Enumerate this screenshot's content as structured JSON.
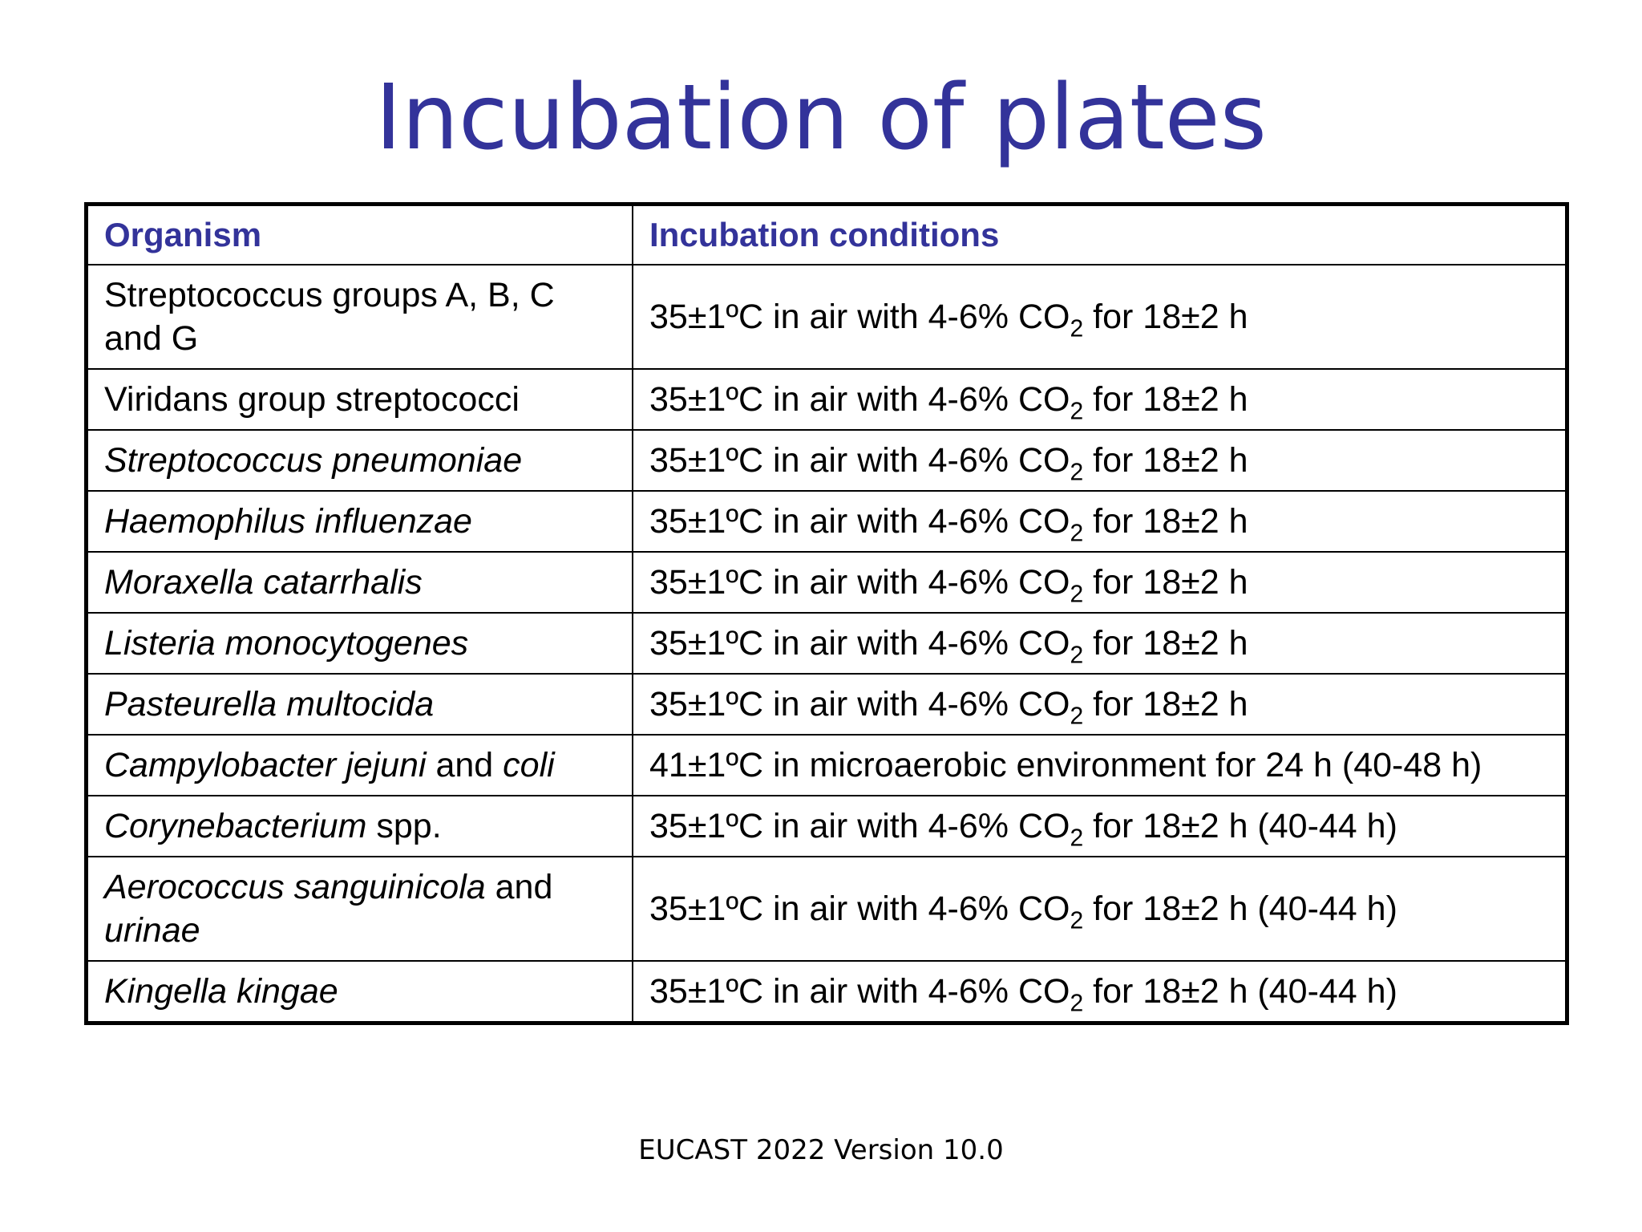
{
  "title": "Incubation of plates",
  "table": {
    "headers": [
      "Organism",
      "Incubation conditions"
    ],
    "rows": [
      {
        "organism": [
          {
            "t": "Streptococcus groups A, B, C and G",
            "i": false
          }
        ],
        "conditions": {
          "pre": "35±1ºC in air with 4-6% CO",
          "sub": "2",
          "post": " for 18±2 h"
        },
        "tall": true
      },
      {
        "organism": [
          {
            "t": "Viridans group streptococci",
            "i": false
          }
        ],
        "conditions": {
          "pre": "35±1ºC in air with 4-6% CO",
          "sub": "2",
          "post": " for 18±2 h"
        }
      },
      {
        "organism": [
          {
            "t": "Streptococcus pneumoniae",
            "i": true
          }
        ],
        "conditions": {
          "pre": "35±1ºC in air with 4-6% CO",
          "sub": "2",
          "post": " for 18±2 h"
        }
      },
      {
        "organism": [
          {
            "t": "Haemophilus influenzae",
            "i": true
          }
        ],
        "conditions": {
          "pre": "35±1ºC in air with 4-6% CO",
          "sub": "2",
          "post": " for 18±2 h"
        }
      },
      {
        "organism": [
          {
            "t": "Moraxella catarrhalis",
            "i": true
          }
        ],
        "conditions": {
          "pre": "35±1ºC in air with 4-6% CO",
          "sub": "2",
          "post": " for 18±2 h"
        }
      },
      {
        "organism": [
          {
            "t": "Listeria monocytogenes",
            "i": true
          }
        ],
        "conditions": {
          "pre": "35±1ºC in air with 4-6% CO",
          "sub": "2",
          "post": " for 18±2 h"
        }
      },
      {
        "organism": [
          {
            "t": "Pasteurella multocida",
            "i": true
          }
        ],
        "conditions": {
          "pre": "35±1ºC in air with 4-6% CO",
          "sub": "2",
          "post": " for 18±2 h"
        }
      },
      {
        "organism": [
          {
            "t": "Campylobacter jejuni",
            "i": true
          },
          {
            "t": " and ",
            "i": false
          },
          {
            "t": "coli",
            "i": true
          }
        ],
        "conditions": {
          "pre": "41±1ºC in microaerobic environment for 24 h (40-48 h)",
          "sub": "",
          "post": ""
        }
      },
      {
        "organism": [
          {
            "t": "Corynebacterium",
            "i": true
          },
          {
            "t": " spp.",
            "i": false
          }
        ],
        "conditions": {
          "pre": "35±1ºC in air with 4-6% CO",
          "sub": "2",
          "post": " for 18±2 h (40-44 h)"
        }
      },
      {
        "organism": [
          {
            "t": "Aerococcus sanguinicola",
            "i": true
          },
          {
            "t": " and ",
            "i": false
          },
          {
            "t": "urinae",
            "i": true
          }
        ],
        "conditions": {
          "pre": "35±1ºC in air with 4-6% CO",
          "sub": "2",
          "post": " for 18±2 h (40-44 h)"
        },
        "tall": true
      },
      {
        "organism": [
          {
            "t": "Kingella kingae",
            "i": true
          }
        ],
        "conditions": {
          "pre": "35±1ºC in air with 4-6% CO",
          "sub": "2",
          "post": " for 18±2 h (40-44 h)"
        }
      }
    ]
  },
  "footer": "EUCAST 2022 Version 10.0",
  "colors": {
    "title": "#33339a",
    "header_text": "#33339a",
    "border": "#000000"
  }
}
